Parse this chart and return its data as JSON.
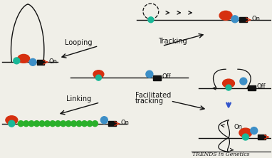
{
  "title": "TRENDS in Genetics",
  "bg_color": "#f0efe8",
  "red_color": "#d63010",
  "blue_color": "#3d8fc7",
  "teal_color": "#1ab898",
  "green_color": "#2ab02a",
  "black_color": "#111111",
  "blue_arrow_color": "#3355cc",
  "looping_label": "Looping",
  "tracking_label": "Tracking",
  "linking_label": "Linking",
  "facilitated_label1": "Facilitated",
  "facilitated_label2": "tracking",
  "on_label": "On",
  "off_label": "Off"
}
